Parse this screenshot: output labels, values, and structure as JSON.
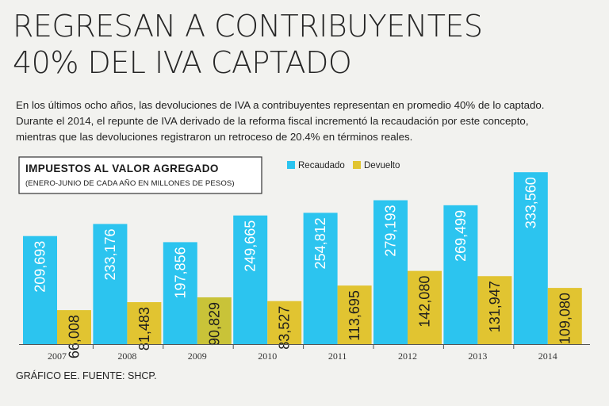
{
  "title_lines": [
    "REGRESAN A CONTRIBUYENTES",
    "40% DEL IVA CAPTADO"
  ],
  "subtitle_lines": [
    "En los últimos ocho años, las devoluciones de IVA a contribuyentes representan en promedio 40% de lo captado.",
    "Durante el 2014, el repunte de IVA derivado de la reforma fiscal incrementó la recaudación por este concepto,",
    "mientras que las devoluciones registraron un retroceso de 20.4% en términos reales."
  ],
  "source": "GRÁFICO EE. FUENTE: SHCP.",
  "colors": {
    "recaudado": "#2cc4ef",
    "devuelto": "#e1c431",
    "devuelto_2009": "#c9c338"
  },
  "chart_data": {
    "type": "bar",
    "title": "IMPUESTOS AL VALOR AGREGADO",
    "subtitle": "(ENERO-JUNIO DE CADA AÑO EN MILLONES DE PESOS)",
    "categories": [
      "2007",
      "2008",
      "2009",
      "2010",
      "2011",
      "2012",
      "2013",
      "2014"
    ],
    "series": [
      {
        "name": "Recaudado",
        "values": [
          209693,
          233176,
          197856,
          249665,
          254812,
          279193,
          269499,
          333560
        ],
        "labels": [
          "209,693",
          "233,176",
          "197,856",
          "249,665",
          "254,812",
          "279,193",
          "269,499",
          "333,560"
        ]
      },
      {
        "name": "Devuelto",
        "values": [
          66008,
          81483,
          90829,
          83527,
          113695,
          142080,
          131947,
          109080
        ],
        "labels": [
          "66,008",
          "81,483",
          "90,829",
          "83,527",
          "113,695",
          "142,080",
          "131,947",
          "109,080"
        ]
      }
    ],
    "legend": "top",
    "ylim": [
      0,
      380000
    ],
    "xlabel": "",
    "ylabel": ""
  }
}
